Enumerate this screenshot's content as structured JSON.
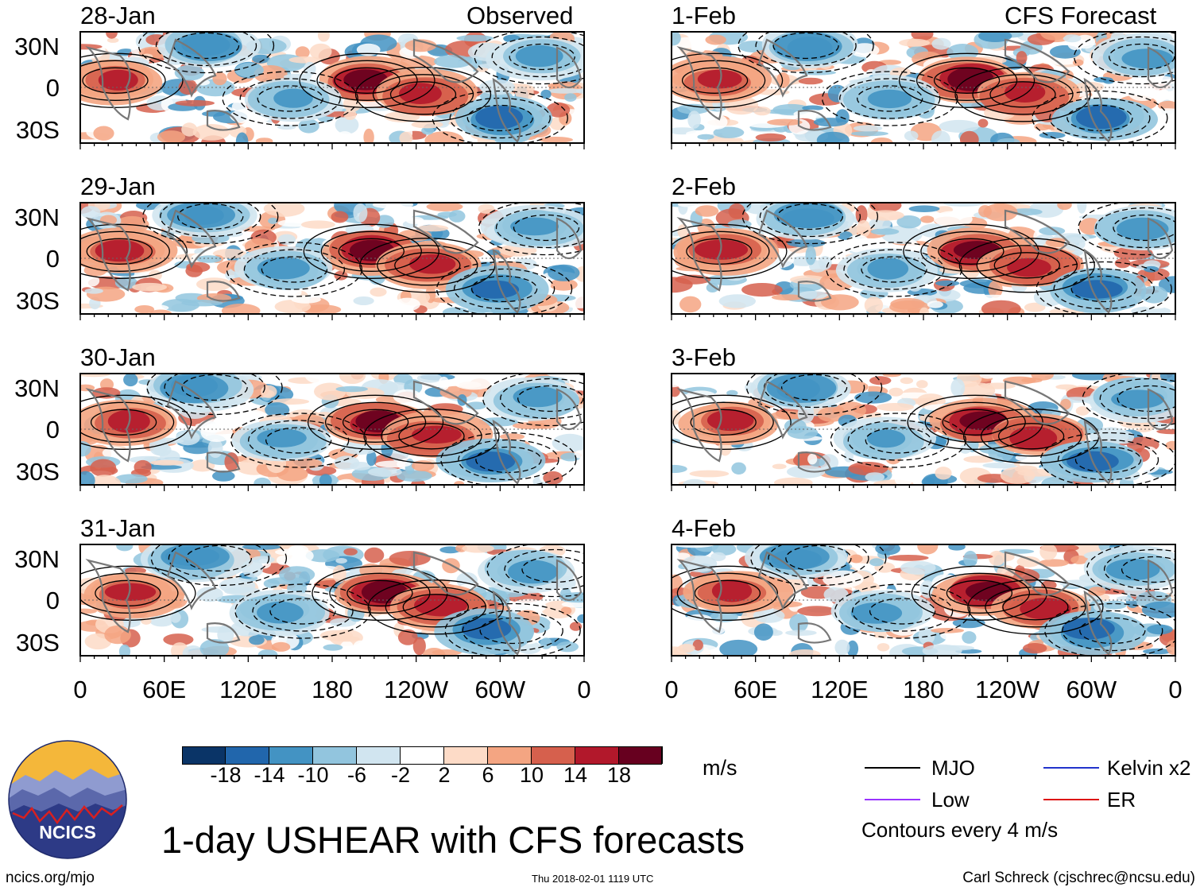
{
  "chart_data": {
    "type": "heatmap",
    "title": "1-day USHEAR with CFS forecasts",
    "variable": "USHEAR",
    "units": "m/s",
    "left_column_header": "Observed",
    "right_column_header": "CFS Forecast",
    "panels": [
      {
        "date": "28-Jan",
        "column": "Observed"
      },
      {
        "date": "29-Jan",
        "column": "Observed"
      },
      {
        "date": "30-Jan",
        "column": "Observed"
      },
      {
        "date": "31-Jan",
        "column": "Observed"
      },
      {
        "date": "1-Feb",
        "column": "CFS Forecast"
      },
      {
        "date": "2-Feb",
        "column": "CFS Forecast"
      },
      {
        "date": "3-Feb",
        "column": "CFS Forecast"
      },
      {
        "date": "4-Feb",
        "column": "CFS Forecast"
      }
    ],
    "y_tick_labels": [
      "30N",
      "0",
      "30S"
    ],
    "x_tick_labels": [
      "0",
      "60E",
      "120E",
      "180",
      "120W",
      "60W",
      "0"
    ],
    "x_range_deg": [
      0,
      360
    ],
    "y_range_deg": [
      -40,
      40
    ],
    "colorbar": {
      "levels": [
        -18,
        -14,
        -10,
        -6,
        -2,
        2,
        6,
        10,
        14,
        18
      ],
      "tick_labels": [
        "-18",
        "-14",
        "-10",
        "-6",
        "-2",
        "2",
        "6",
        "10",
        "14",
        "18"
      ],
      "colors": [
        "#0a3467",
        "#2166ac",
        "#4393c3",
        "#92c5de",
        "#d1e5f0",
        "#ffffff",
        "#fddbc7",
        "#f4a582",
        "#d6604d",
        "#b2182b",
        "#67001f"
      ]
    },
    "features": [
      {
        "kind": "anomaly",
        "sign": "positive",
        "lon": 205,
        "lat": 5,
        "value": 18
      },
      {
        "kind": "anomaly",
        "sign": "positive",
        "lon": 245,
        "lat": -5,
        "value": 16
      },
      {
        "kind": "anomaly",
        "sign": "positive",
        "lon": 25,
        "lat": 5,
        "value": 14
      },
      {
        "kind": "anomaly",
        "sign": "negative",
        "lon": 150,
        "lat": -8,
        "value": -10
      },
      {
        "kind": "anomaly",
        "sign": "negative",
        "lon": 300,
        "lat": -22,
        "value": -14
      },
      {
        "kind": "anomaly",
        "sign": "negative",
        "lon": 90,
        "lat": 30,
        "value": -12
      },
      {
        "kind": "anomaly",
        "sign": "negative",
        "lon": 330,
        "lat": 22,
        "value": -10
      }
    ],
    "contour_filters": [
      {
        "name": "MJO",
        "color": "#000000"
      },
      {
        "name": "Kelvin x2",
        "color": "#2233cc"
      },
      {
        "name": "Low",
        "color": "#9933ff"
      },
      {
        "name": "ER",
        "color": "#dd1111"
      }
    ],
    "contour_interval_text": "Contours every 4 m/s"
  },
  "branding": {
    "logo_text": "NCICS",
    "url": "ncics.org/mjo"
  },
  "timestamp": "Thu 2018-02-01 1119 UTC",
  "author": "Carl Schreck (cjschrec@ncsu.edu)",
  "colors": {
    "outline": "#000000",
    "coast": "#777777"
  }
}
